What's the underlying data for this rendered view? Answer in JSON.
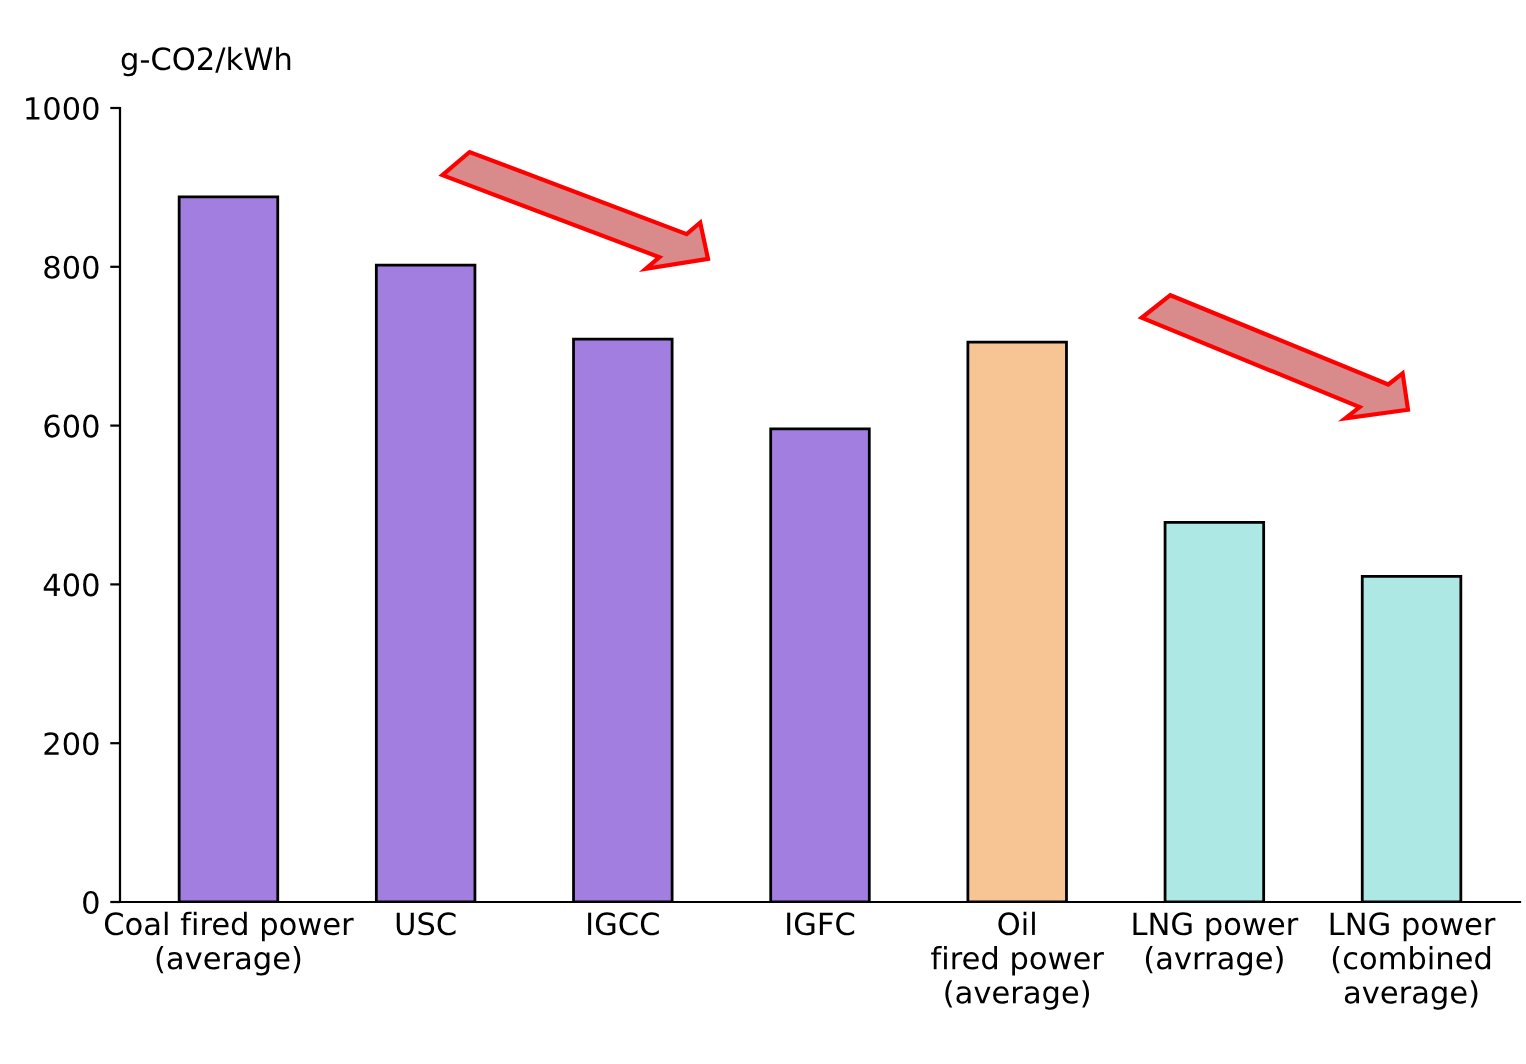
{
  "chart_data": {
    "type": "bar",
    "ylabel": "g-CO2/kWh",
    "categories": [
      "Coal fired power\n(average)",
      "USC",
      "IGCC",
      "IGFC",
      "Oil\nfired power\n(average)",
      "LNG power\n(avrrage)",
      "LNG power\n(combined\naverage)"
    ],
    "values": [
      888,
      802,
      709,
      596,
      705,
      478,
      410
    ],
    "colors": [
      "#a27ee0",
      "#a27ee0",
      "#a27ee0",
      "#a27ee0",
      "#f7c594",
      "#aee8e4",
      "#aee8e4"
    ],
    "ylim": [
      0,
      1000
    ],
    "yticks": [
      0,
      200,
      400,
      600,
      800,
      1000
    ],
    "grid": false,
    "legend": false
  }
}
